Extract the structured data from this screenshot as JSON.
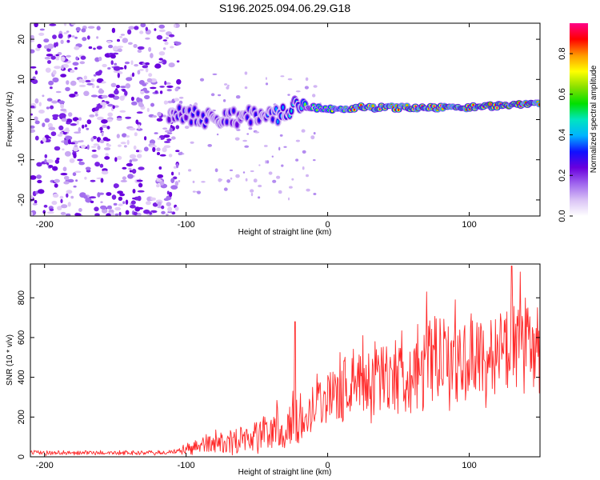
{
  "title": "S196.2025.094.06.29.G18",
  "chart_data": [
    {
      "type": "heatmap",
      "xlabel": "Height of straight line (km)",
      "ylabel": "Frequency (Hz)",
      "xlim": [
        -210,
        150
      ],
      "ylim": [
        -24,
        24
      ],
      "x_ticks": [
        -200,
        -100,
        0,
        100
      ],
      "y_ticks": [
        -20,
        -10,
        0,
        10,
        20
      ],
      "colorbar": {
        "label": "Normalized spectral amplitude",
        "range": [
          0,
          0.95
        ],
        "ticks": [
          0.0,
          0.2,
          0.4,
          0.6,
          0.8
        ],
        "tick_labels": [
          "0.0",
          "0.2",
          "0.4",
          "0.6",
          "0.8"
        ],
        "colors": [
          "#ffffff",
          "#d9c2f5",
          "#a066ee",
          "#6a00dd",
          "#1010ff",
          "#00b4ff",
          "#00e5c0",
          "#00e000",
          "#88e000",
          "#ffff00",
          "#ff9900",
          "#ff0000",
          "#ff0088"
        ]
      },
      "ridge": {
        "x": [
          -110,
          -100,
          -90,
          -80,
          -70,
          -60,
          -50,
          -40,
          -30,
          -20,
          -10,
          0,
          20,
          40,
          60,
          80,
          100,
          120,
          140,
          150
        ],
        "frequency": [
          2.0,
          1.5,
          0.5,
          0.0,
          1.0,
          0.5,
          1.0,
          0.5,
          1.5,
          3.5,
          3.0,
          2.5,
          3.0,
          3.0,
          3.0,
          3.0,
          3.0,
          3.5,
          4.0,
          4.0
        ],
        "peak_amplitude": [
          0.25,
          0.3,
          0.3,
          0.28,
          0.3,
          0.28,
          0.3,
          0.35,
          0.4,
          0.5,
          0.55,
          0.6,
          0.85,
          0.85,
          0.88,
          0.88,
          0.9,
          0.9,
          0.9,
          0.9
        ]
      },
      "noise_region": {
        "x_range": [
          -210,
          -105
        ],
        "frequency_range": [
          -24,
          24
        ],
        "amplitude": 0.08
      }
    },
    {
      "type": "line",
      "xlabel": "Height of straight line (km)",
      "ylabel": "SNR (10 * v/v)",
      "xlim": [
        -210,
        150
      ],
      "ylim": [
        0,
        970
      ],
      "x_ticks": [
        -200,
        -100,
        0,
        100
      ],
      "y_ticks": [
        0,
        200,
        400,
        600,
        800
      ],
      "series": [
        {
          "color": "#ff2a2a",
          "x": [
            -210,
            -200,
            -180,
            -160,
            -140,
            -120,
            -105,
            -100,
            -90,
            -80,
            -70,
            -60,
            -50,
            -40,
            -30,
            -20,
            -10,
            0,
            10,
            20,
            30,
            40,
            50,
            60,
            70,
            80,
            90,
            100,
            110,
            120,
            130,
            140,
            150
          ],
          "mean": [
            20,
            20,
            20,
            20,
            20,
            20,
            25,
            40,
            60,
            70,
            80,
            95,
            110,
            130,
            150,
            180,
            280,
            300,
            340,
            380,
            390,
            410,
            430,
            440,
            460,
            470,
            480,
            490,
            500,
            520,
            540,
            540,
            530
          ],
          "spread": [
            12,
            12,
            12,
            12,
            12,
            12,
            15,
            30,
            50,
            60,
            70,
            80,
            100,
            110,
            140,
            150,
            150,
            160,
            180,
            190,
            200,
            200,
            210,
            220,
            220,
            220,
            230,
            230,
            230,
            230,
            240,
            240,
            240
          ],
          "peaks": [
            [
              -23,
              680
            ],
            [
              25,
              610
            ],
            [
              70,
              830
            ],
            [
              90,
              790
            ],
            [
              130,
              960
            ],
            [
              136,
              930
            ]
          ]
        }
      ]
    }
  ]
}
